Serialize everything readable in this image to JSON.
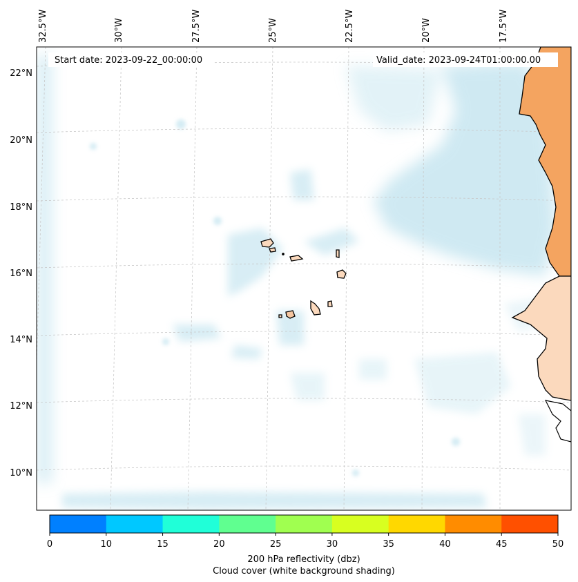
{
  "map": {
    "start_date": "Start date: 2023-09-22_00:00:00",
    "valid_date": "Valid_date: 2023-09-24T01:00:00.00",
    "longitude_labels": [
      "32.5°W",
      "30°W",
      "27.5°W",
      "25°W",
      "22.5°W",
      "20°W",
      "17.5°W"
    ],
    "latitude_labels": [
      "22°N",
      "20°N",
      "18°N",
      "16°N",
      "14°N",
      "12°N",
      "10°N"
    ],
    "region": "Cabo Verde and West African coast",
    "colors": {
      "land": "#f4a460",
      "land_light": "#fbd9bd",
      "cloud": "#a8d8e8",
      "coastline": "#000000",
      "gridline": "#c8c8c8"
    }
  },
  "colorbar": {
    "ticks": [
      "0",
      "10",
      "15",
      "20",
      "25",
      "30",
      "35",
      "40",
      "45",
      "50"
    ],
    "colors": [
      "#0080ff",
      "#00c8ff",
      "#20ffd8",
      "#60ff90",
      "#a0ff50",
      "#d8ff20",
      "#ffd800",
      "#ff8c00",
      "#ff5000"
    ],
    "label_line1": "200 hPa reflectivity (dbz)",
    "label_line2": "Cloud cover (white background shading)"
  }
}
